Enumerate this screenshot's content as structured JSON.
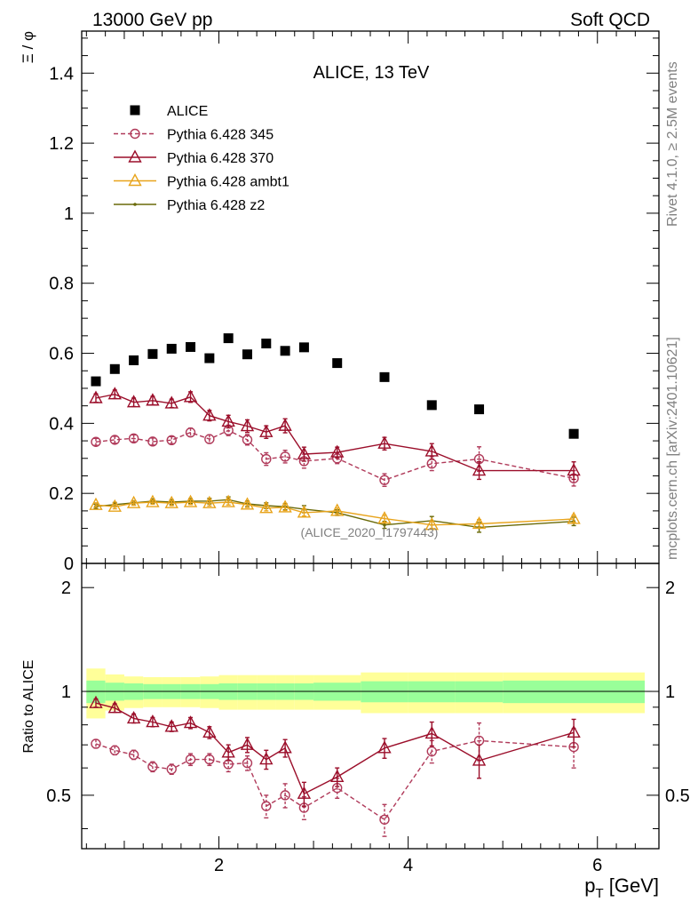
{
  "header": {
    "left": "13000 GeV pp",
    "right": "Soft QCD"
  },
  "side": {
    "rivet": "Rivet 4.1.0, ≥ 2.5M events",
    "mcplots": "mcplots.cern.ch [arXiv:2401.10621]"
  },
  "chart_data": [
    {
      "type": "scatter",
      "title": "ALICE, 13 TeV",
      "ylabel": "Ξ / φ",
      "xlabel": "",
      "xlim": [
        0.55,
        6.65
      ],
      "ylim": [
        0,
        1.52
      ],
      "yticks": [
        0,
        0.2,
        0.4,
        0.6,
        0.8,
        1,
        1.2,
        1.4
      ],
      "ytick_labels": [
        "0",
        "0.2",
        "0.4",
        "0.6",
        "0.8",
        "1",
        "1.2",
        "1.4"
      ],
      "watermark": "(ALICE_2020_I1797443)",
      "x": [
        0.7,
        0.9,
        1.1,
        1.3,
        1.5,
        1.7,
        1.9,
        2.1,
        2.3,
        2.5,
        2.7,
        2.9,
        3.25,
        3.75,
        4.25,
        4.75,
        5.75
      ],
      "series": [
        {
          "name": "ALICE",
          "color": "#000000",
          "style": "data",
          "values": [
            0.52,
            0.555,
            0.58,
            0.598,
            0.613,
            0.618,
            0.586,
            0.643,
            0.597,
            0.628,
            0.607,
            0.617,
            0.572,
            0.532,
            0.452,
            0.44,
            0.37
          ]
        },
        {
          "name": "Pythia 6.428 345",
          "color": "#b03a5a",
          "style": "circle-dashed",
          "values": [
            0.347,
            0.353,
            0.357,
            0.348,
            0.352,
            0.374,
            0.355,
            0.38,
            0.353,
            0.298,
            0.305,
            0.292,
            0.3,
            0.238,
            0.285,
            0.298,
            0.243
          ],
          "errors": [
            0.01,
            0.01,
            0.01,
            0.01,
            0.01,
            0.012,
            0.012,
            0.015,
            0.015,
            0.018,
            0.018,
            0.02,
            0.015,
            0.018,
            0.02,
            0.035,
            0.022
          ]
        },
        {
          "name": "Pythia 6.428 370",
          "color": "#9b0e2a",
          "style": "triangle-solid",
          "values": [
            0.472,
            0.483,
            0.46,
            0.465,
            0.457,
            0.475,
            0.422,
            0.405,
            0.392,
            0.375,
            0.393,
            0.312,
            0.317,
            0.342,
            0.32,
            0.265,
            0.265
          ],
          "errors": [
            0.012,
            0.012,
            0.012,
            0.012,
            0.012,
            0.015,
            0.015,
            0.018,
            0.018,
            0.018,
            0.02,
            0.02,
            0.015,
            0.018,
            0.022,
            0.025,
            0.025
          ]
        },
        {
          "name": "Pythia 6.428 ambt1",
          "color": "#e8a41c",
          "style": "triangle-solid",
          "values": [
            0.167,
            0.162,
            0.172,
            0.175,
            0.172,
            0.175,
            0.172,
            0.175,
            0.168,
            0.158,
            0.16,
            0.145,
            0.15,
            0.128,
            0.11,
            0.113,
            0.127
          ],
          "errors": [
            0.006,
            0.006,
            0.006,
            0.006,
            0.007,
            0.007,
            0.008,
            0.008,
            0.008,
            0.008,
            0.009,
            0.01,
            0.008,
            0.01,
            0.01,
            0.012,
            0.01
          ]
        },
        {
          "name": "Pythia 6.428 z2",
          "color": "#6a6a08",
          "style": "dot-solid",
          "values": [
            0.163,
            0.168,
            0.173,
            0.178,
            0.175,
            0.178,
            0.178,
            0.182,
            0.17,
            0.165,
            0.162,
            0.155,
            0.145,
            0.11,
            0.122,
            0.103,
            0.12
          ],
          "errors": [
            0.006,
            0.006,
            0.006,
            0.006,
            0.007,
            0.007,
            0.008,
            0.008,
            0.008,
            0.008,
            0.009,
            0.01,
            0.008,
            0.01,
            0.012,
            0.014,
            0.012
          ]
        }
      ]
    },
    {
      "type": "scatter",
      "title": "",
      "ylabel": "Ratio to ALICE",
      "xlabel": "p_T [GeV]",
      "xlabel_main": "p",
      "xlabel_sub": "T",
      "xlabel_unit": "[GeV]",
      "xlim": [
        0.55,
        6.65
      ],
      "ylim": [
        0.35,
        2.35
      ],
      "yticks": [
        0.5,
        1,
        2
      ],
      "ytick_labels": [
        "0.5",
        "1",
        "2"
      ],
      "xticks": [
        2,
        4,
        6
      ],
      "xtick_labels": [
        "2",
        "4",
        "6"
      ],
      "bins": [
        [
          0.6,
          0.8
        ],
        [
          0.8,
          1.0
        ],
        [
          1.0,
          1.2
        ],
        [
          1.2,
          1.4
        ],
        [
          1.4,
          1.6
        ],
        [
          1.6,
          1.8
        ],
        [
          1.8,
          2.0
        ],
        [
          2.0,
          2.2
        ],
        [
          2.2,
          2.4
        ],
        [
          2.4,
          2.6
        ],
        [
          2.6,
          2.8
        ],
        [
          2.8,
          3.0
        ],
        [
          3.0,
          3.5
        ],
        [
          3.5,
          4.0
        ],
        [
          4.0,
          4.5
        ],
        [
          4.5,
          5.0
        ],
        [
          5.0,
          6.5
        ]
      ],
      "band_inner": [
        0.075,
        0.06,
        0.055,
        0.05,
        0.05,
        0.05,
        0.05,
        0.055,
        0.055,
        0.055,
        0.055,
        0.055,
        0.06,
        0.07,
        0.07,
        0.07,
        0.075
      ],
      "band_outer": [
        0.165,
        0.12,
        0.105,
        0.1,
        0.1,
        0.1,
        0.105,
        0.115,
        0.115,
        0.115,
        0.115,
        0.115,
        0.115,
        0.135,
        0.135,
        0.135,
        0.135
      ],
      "series": [
        {
          "name": "Pythia 6.428 345",
          "color": "#b03a5a",
          "style": "circle-dashed",
          "values": [
            0.705,
            0.675,
            0.655,
            0.605,
            0.595,
            0.635,
            0.635,
            0.615,
            0.62,
            0.465,
            0.5,
            0.46,
            0.525,
            0.425,
            0.67,
            0.72,
            0.69
          ],
          "errors": [
            0.02,
            0.02,
            0.02,
            0.02,
            0.02,
            0.025,
            0.025,
            0.03,
            0.03,
            0.035,
            0.04,
            0.035,
            0.035,
            0.045,
            0.05,
            0.09,
            0.09
          ]
        },
        {
          "name": "Pythia 6.428 370",
          "color": "#9b0e2a",
          "style": "triangle-solid",
          "values": [
            0.925,
            0.895,
            0.835,
            0.815,
            0.79,
            0.81,
            0.76,
            0.665,
            0.7,
            0.635,
            0.685,
            0.505,
            0.565,
            0.685,
            0.755,
            0.63,
            0.76
          ],
          "errors": [
            0.025,
            0.025,
            0.025,
            0.025,
            0.025,
            0.03,
            0.03,
            0.035,
            0.035,
            0.04,
            0.04,
            0.04,
            0.035,
            0.045,
            0.06,
            0.07,
            0.07
          ]
        }
      ]
    }
  ]
}
